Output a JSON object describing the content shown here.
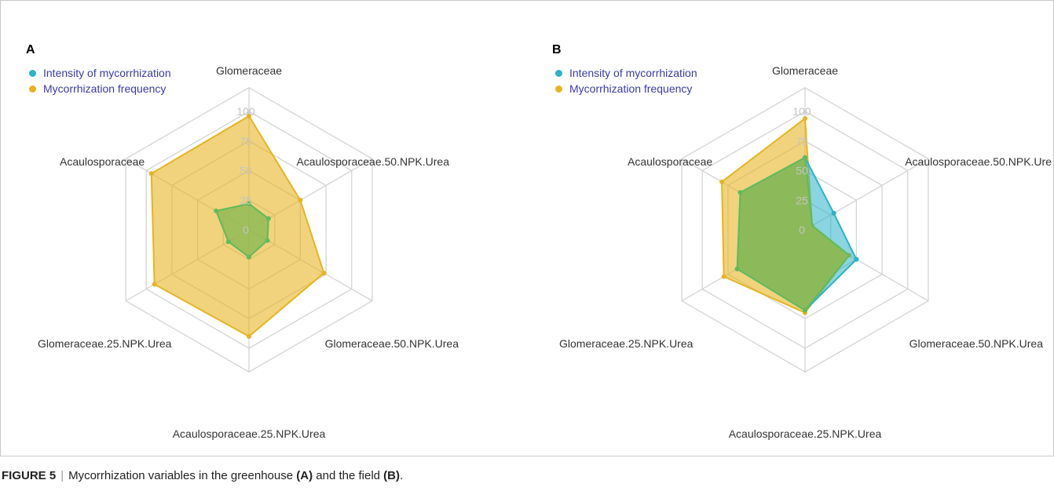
{
  "figure": {
    "label": "FIGURE 5",
    "separator": "|",
    "caption_prefix": "Mycorrhization variables in the greenhouse",
    "caption_a": "(A)",
    "caption_middle": "and the field",
    "caption_b": "(B)",
    "caption_suffix": "."
  },
  "colors": {
    "intensity": "#2ab3c9",
    "frequency": "#e6b41e",
    "overlap": "#8cb955",
    "overlap_stroke": "#5fbb5a",
    "grid": "#d4d4d4",
    "tick": "#c4c4c4",
    "legend_text": "#3a3aa8"
  },
  "chart_data": [
    {
      "panel": "A",
      "type": "radar",
      "axes": [
        "Glomeraceae",
        "Acaulosporaceae.50.NPK.Urea",
        "Glomeraceae.50.NPK.Urea",
        "Acaulosporaceae.25.NPK.Urea",
        "Glomeraceae.25.NPK.Urea",
        "Acaulosporaceae"
      ],
      "rlim": [
        0,
        100
      ],
      "ticks": [
        "0",
        "25",
        "50",
        "75",
        "100"
      ],
      "legend_position": "top-left",
      "series": [
        {
          "name": "Intensity of mycorrhization",
          "color": "#2ab3c9",
          "values": [
            22,
            19,
            18,
            23,
            20,
            32
          ]
        },
        {
          "name": "Mycorrhization frequency",
          "color": "#e6b41e",
          "values": [
            96,
            50,
            73,
            90,
            92,
            95
          ]
        }
      ]
    },
    {
      "panel": "B",
      "type": "radar",
      "axes": [
        "Glomeraceae",
        "Acaulosporaceae.50.NPK.Ure",
        "Glomeraceae.50.NPK.Urea",
        "Acaulosporaceae.25.NPK.Urea",
        "Glomeraceae.25.NPK.Urea",
        "Acaulosporaceae"
      ],
      "rlim": [
        0,
        100
      ],
      "ticks": [
        "0",
        "25",
        "50",
        "75",
        "100"
      ],
      "legend_position": "top-left",
      "series": [
        {
          "name": "Intensity of mycorrhization",
          "color": "#2ab3c9",
          "values": [
            61,
            28,
            50,
            68,
            66,
            63
          ]
        },
        {
          "name": "Mycorrhization frequency",
          "color": "#e6b41e",
          "values": [
            94,
            7,
            43,
            70,
            79,
            81
          ]
        }
      ]
    }
  ]
}
